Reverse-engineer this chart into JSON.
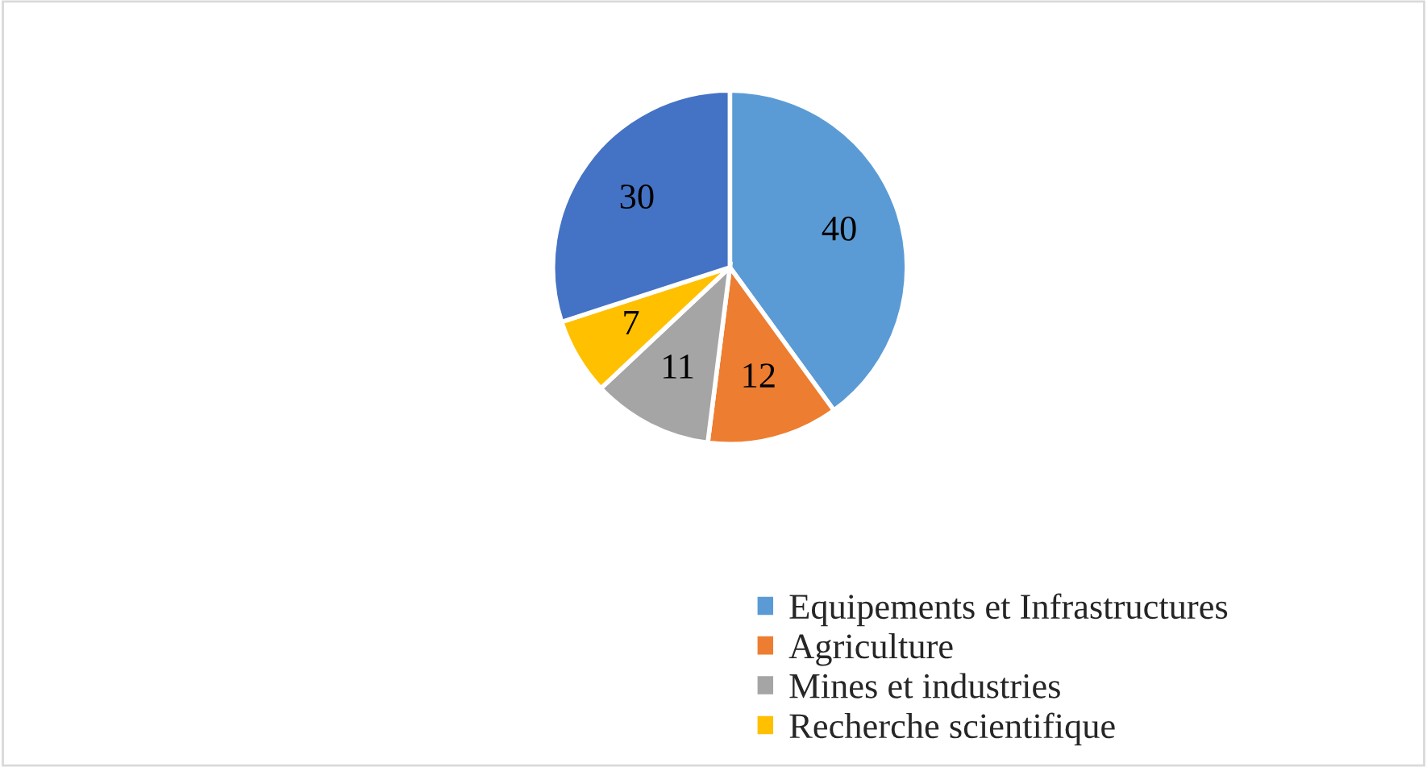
{
  "chart_data": {
    "type": "pie",
    "categories": [
      "Equipements et Infrastructures",
      "Agriculture",
      "Mines et industries",
      "Recherche scientifique",
      null
    ],
    "values": [
      40,
      12,
      11,
      7,
      30
    ],
    "colors": [
      "#5b9bd5",
      "#ed7d31",
      "#a5a5a5",
      "#ffc000",
      "#4472c4"
    ],
    "data_labels": true,
    "legend": "bottom right"
  }
}
